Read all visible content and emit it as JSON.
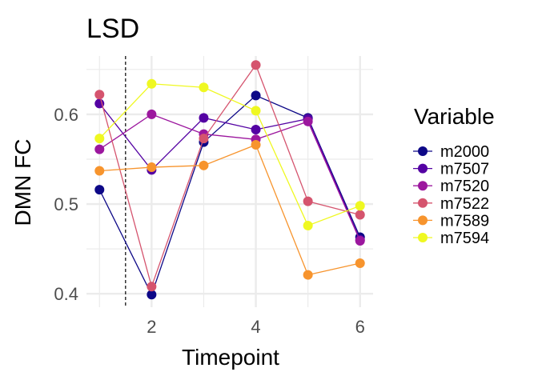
{
  "chart_data": {
    "type": "line",
    "title": "LSD",
    "xlabel": "Timepoint",
    "ylabel": "DMN FC",
    "x": [
      1,
      2,
      3,
      4,
      5,
      6
    ],
    "xlim": [
      0.75,
      6.25
    ],
    "ylim": [
      0.385,
      0.665
    ],
    "xticks": [
      2,
      4,
      6
    ],
    "yticks": [
      0.4,
      0.5,
      0.6
    ],
    "grid": true,
    "reference_line": {
      "x": 1.5,
      "style": "dashed"
    },
    "legend": {
      "title": "Variable",
      "position": "right"
    },
    "series": [
      {
        "name": "m2000",
        "color": "#0d0887",
        "values": [
          0.516,
          0.399,
          0.569,
          0.621,
          0.596,
          0.463
        ]
      },
      {
        "name": "m7507",
        "color": "#5402a3",
        "values": [
          0.612,
          0.538,
          0.596,
          0.583,
          0.595,
          0.46
        ]
      },
      {
        "name": "m7520",
        "color": "#9c179e",
        "values": [
          0.561,
          0.6,
          0.578,
          0.572,
          0.592,
          0.459
        ]
      },
      {
        "name": "m7522",
        "color": "#d5546e",
        "values": [
          0.622,
          0.408,
          0.573,
          0.655,
          0.503,
          0.488
        ]
      },
      {
        "name": "m7589",
        "color": "#f7942d",
        "values": [
          0.537,
          0.541,
          0.543,
          0.566,
          0.421,
          0.434
        ]
      },
      {
        "name": "m7594",
        "color": "#eff821",
        "values": [
          0.573,
          0.634,
          0.63,
          0.604,
          0.476,
          0.498
        ]
      }
    ]
  }
}
